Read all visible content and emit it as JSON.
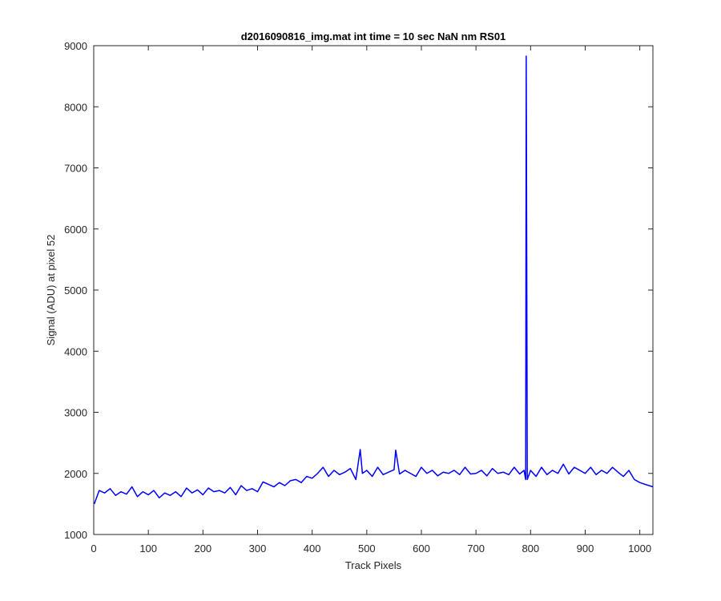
{
  "chart_data": {
    "type": "line",
    "title": "d2016090816_img.mat int time = 10 sec  NaN nm RS01",
    "xlabel": "Track Pixels",
    "ylabel": "Signal (ADU) at pixel 52",
    "xlim": [
      0,
      1024
    ],
    "ylim": [
      1000,
      9000
    ],
    "xticks": [
      0,
      100,
      200,
      300,
      400,
      500,
      600,
      700,
      800,
      900,
      1000
    ],
    "yticks": [
      1000,
      2000,
      3000,
      4000,
      5000,
      6000,
      7000,
      8000,
      9000
    ],
    "grid": false,
    "series": [
      {
        "color": "#0000ff",
        "x": [
          1,
          10,
          20,
          30,
          40,
          50,
          60,
          70,
          80,
          90,
          100,
          110,
          120,
          130,
          140,
          150,
          160,
          170,
          180,
          190,
          200,
          210,
          220,
          230,
          240,
          250,
          260,
          270,
          280,
          290,
          300,
          310,
          320,
          330,
          340,
          350,
          360,
          370,
          380,
          390,
          400,
          410,
          420,
          430,
          440,
          450,
          460,
          470,
          480,
          488,
          492,
          500,
          510,
          520,
          530,
          540,
          550,
          553,
          560,
          570,
          580,
          590,
          600,
          610,
          620,
          630,
          640,
          650,
          660,
          670,
          680,
          690,
          700,
          710,
          720,
          730,
          740,
          750,
          760,
          770,
          780,
          788,
          791,
          792,
          794,
          800,
          810,
          820,
          830,
          840,
          850,
          860,
          870,
          880,
          890,
          900,
          910,
          920,
          930,
          940,
          950,
          960,
          970,
          980,
          990,
          1000,
          1010,
          1024
        ],
        "y": [
          1500,
          1720,
          1680,
          1750,
          1640,
          1700,
          1660,
          1780,
          1620,
          1700,
          1650,
          1720,
          1600,
          1680,
          1640,
          1700,
          1620,
          1760,
          1680,
          1730,
          1650,
          1760,
          1700,
          1720,
          1680,
          1770,
          1650,
          1800,
          1720,
          1750,
          1700,
          1860,
          1820,
          1780,
          1850,
          1800,
          1880,
          1900,
          1850,
          1950,
          1920,
          2000,
          2100,
          1950,
          2050,
          1980,
          2020,
          2080,
          1900,
          2390,
          2000,
          2050,
          1950,
          2100,
          1980,
          2020,
          2060,
          2380,
          1990,
          2050,
          2000,
          1950,
          2100,
          2000,
          2050,
          1960,
          2020,
          2000,
          2050,
          1980,
          2100,
          1990,
          2000,
          2050,
          1960,
          2080,
          2000,
          2020,
          1980,
          2100,
          1990,
          2050,
          1900,
          8830,
          1900,
          2050,
          1950,
          2100,
          1980,
          2050,
          2000,
          2150,
          1990,
          2100,
          2050,
          2000,
          2100,
          1980,
          2050,
          2000,
          2100,
          2020,
          1950,
          2050,
          1900,
          1850,
          1820,
          1780
        ]
      }
    ]
  }
}
